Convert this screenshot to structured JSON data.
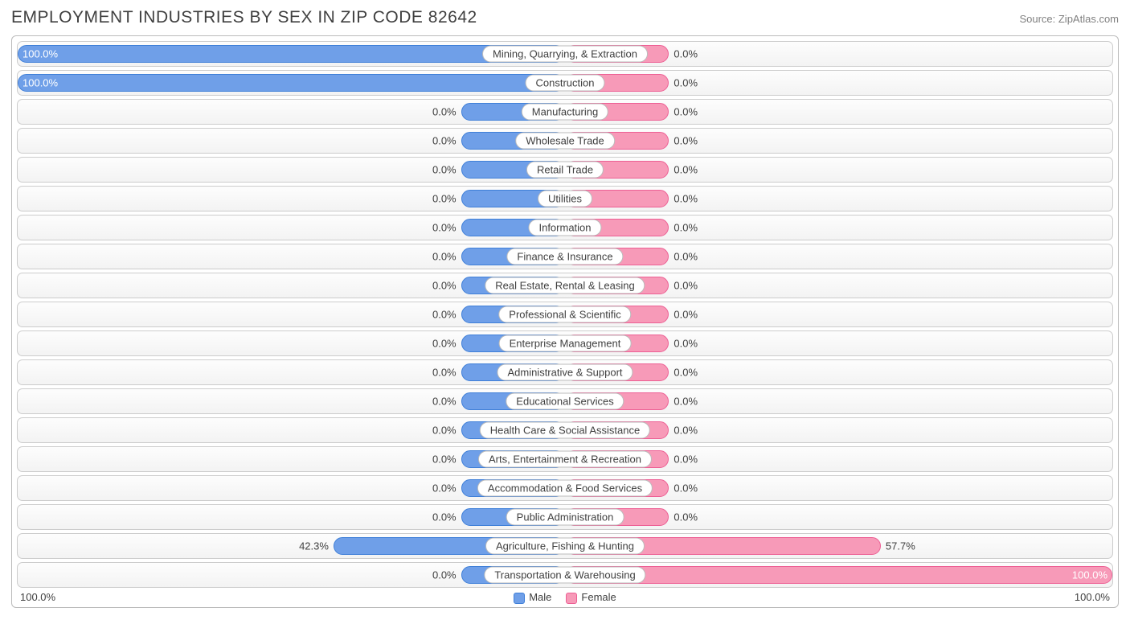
{
  "title": "EMPLOYMENT INDUSTRIES BY SEX IN ZIP CODE 82642",
  "source": "Source: ZipAtlas.com",
  "colors": {
    "male_fill": "#6f9fe8",
    "male_edge": "#3f7fd8",
    "female_fill": "#f79ab8",
    "female_edge": "#ed5f94",
    "row_border": "#cccccc",
    "outer_border": "#bbbbbb",
    "text": "#404040",
    "min_bar_pct": 19
  },
  "legend": {
    "male": "Male",
    "female": "Female"
  },
  "axis": {
    "left": "100.0%",
    "right": "100.0%"
  },
  "rows": [
    {
      "label": "Mining, Quarrying, & Extraction",
      "male": 100.0,
      "female": 0.0
    },
    {
      "label": "Construction",
      "male": 100.0,
      "female": 0.0
    },
    {
      "label": "Manufacturing",
      "male": 0.0,
      "female": 0.0
    },
    {
      "label": "Wholesale Trade",
      "male": 0.0,
      "female": 0.0
    },
    {
      "label": "Retail Trade",
      "male": 0.0,
      "female": 0.0
    },
    {
      "label": "Utilities",
      "male": 0.0,
      "female": 0.0
    },
    {
      "label": "Information",
      "male": 0.0,
      "female": 0.0
    },
    {
      "label": "Finance & Insurance",
      "male": 0.0,
      "female": 0.0
    },
    {
      "label": "Real Estate, Rental & Leasing",
      "male": 0.0,
      "female": 0.0
    },
    {
      "label": "Professional & Scientific",
      "male": 0.0,
      "female": 0.0
    },
    {
      "label": "Enterprise Management",
      "male": 0.0,
      "female": 0.0
    },
    {
      "label": "Administrative & Support",
      "male": 0.0,
      "female": 0.0
    },
    {
      "label": "Educational Services",
      "male": 0.0,
      "female": 0.0
    },
    {
      "label": "Health Care & Social Assistance",
      "male": 0.0,
      "female": 0.0
    },
    {
      "label": "Arts, Entertainment & Recreation",
      "male": 0.0,
      "female": 0.0
    },
    {
      "label": "Accommodation & Food Services",
      "male": 0.0,
      "female": 0.0
    },
    {
      "label": "Public Administration",
      "male": 0.0,
      "female": 0.0
    },
    {
      "label": "Agriculture, Fishing & Hunting",
      "male": 42.3,
      "female": 57.7
    },
    {
      "label": "Transportation & Warehousing",
      "male": 0.0,
      "female": 100.0
    }
  ]
}
